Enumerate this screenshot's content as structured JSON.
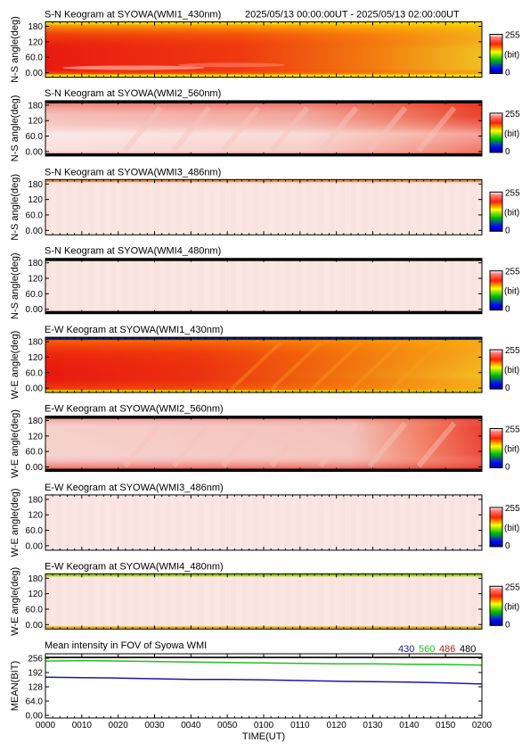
{
  "header": {
    "time_range": "2025/05/13 00:00:00UT - 2025/05/13 02:00:00UT"
  },
  "colorbar": {
    "max_label": "255",
    "unit_label": "(bit)",
    "min_label": "0"
  },
  "keogram_yticks": [
    "180",
    "120",
    "60.0",
    "0.00"
  ],
  "keograms": [
    {
      "title": "S-N Keogram at SYOWA(WMI1_430nm)",
      "ylabel": "N-S angle(deg)",
      "style": "intense",
      "top_band": "#f5d800",
      "bottom_band": "#ffee00"
    },
    {
      "title": "S-N Keogram at SYOWA(WMI2_560nm)",
      "ylabel": "N-S angle(deg)",
      "style": "pale",
      "top_band": "#000000",
      "bottom_band": "#000000"
    },
    {
      "title": "S-N Keogram at SYOWA(WMI3_486nm)",
      "ylabel": "N-S angle(deg)",
      "style": "faint",
      "top_band": "#e89050",
      "bottom_band": "#fbe8e6"
    },
    {
      "title": "S-N Keogram at SYOWA(WMI4_480nm)",
      "ylabel": "N-S angle(deg)",
      "style": "faint",
      "top_band": "#000000",
      "bottom_band": "#000000"
    },
    {
      "title": "E-W Keogram at SYOWA(WMI1_430nm)",
      "ylabel": "W-E angle(deg)",
      "style": "intense2",
      "top_band": "#0a2070",
      "bottom_band": "#e0c000"
    },
    {
      "title": "E-W Keogram at SYOWA(WMI2_560nm)",
      "ylabel": "W-E angle(deg)",
      "style": "pale2",
      "top_band": "#000000",
      "bottom_band": "#000000"
    },
    {
      "title": "E-W Keogram at SYOWA(WMI3_486nm)",
      "ylabel": "W-E angle(deg)",
      "style": "faint",
      "top_band": "#fbe8e6",
      "bottom_band": "#fbe8e6"
    },
    {
      "title": "E-W Keogram at SYOWA(WMI4_480nm)",
      "ylabel": "W-E angle(deg)",
      "style": "faint",
      "top_band": "#9bd000",
      "bottom_band": "#e0b020"
    }
  ],
  "chart_data": {
    "type": "line",
    "title": "Mean intensity in FOV of Syowa WMI",
    "xlabel": "TIME(UT)",
    "ylabel": "MEAN(BIT)",
    "ylim": [
      0,
      256
    ],
    "yticks": [
      "256",
      "192",
      "128",
      "64.0",
      "0.00"
    ],
    "x": [
      "0000",
      "0010",
      "0020",
      "0030",
      "0040",
      "0050",
      "0100",
      "0110",
      "0120",
      "0130",
      "0140",
      "0150",
      "0200"
    ],
    "legend": [
      {
        "name": "430",
        "color": "#1a1aa0"
      },
      {
        "name": "560",
        "color": "#20c020"
      },
      {
        "name": "486",
        "color": "#b02020"
      },
      {
        "name": "480",
        "color": "#000000"
      }
    ],
    "series": [
      {
        "name": "430",
        "color": "#1a1aa0",
        "values": [
          170,
          168,
          166,
          163,
          160,
          160,
          158,
          155,
          152,
          150,
          148,
          145,
          140
        ]
      },
      {
        "name": "560",
        "color": "#20c020",
        "values": [
          240,
          242,
          240,
          238,
          236,
          234,
          232,
          230,
          228,
          228,
          226,
          225,
          222
        ]
      },
      {
        "name": "486",
        "color": "#b02020",
        "values": [
          255,
          255,
          255,
          255,
          255,
          255,
          255,
          255,
          255,
          255,
          255,
          255,
          255
        ]
      },
      {
        "name": "480",
        "color": "#000000",
        "values": [
          256,
          256,
          256,
          256,
          256,
          256,
          256,
          256,
          256,
          256,
          256,
          256,
          256
        ]
      }
    ]
  }
}
